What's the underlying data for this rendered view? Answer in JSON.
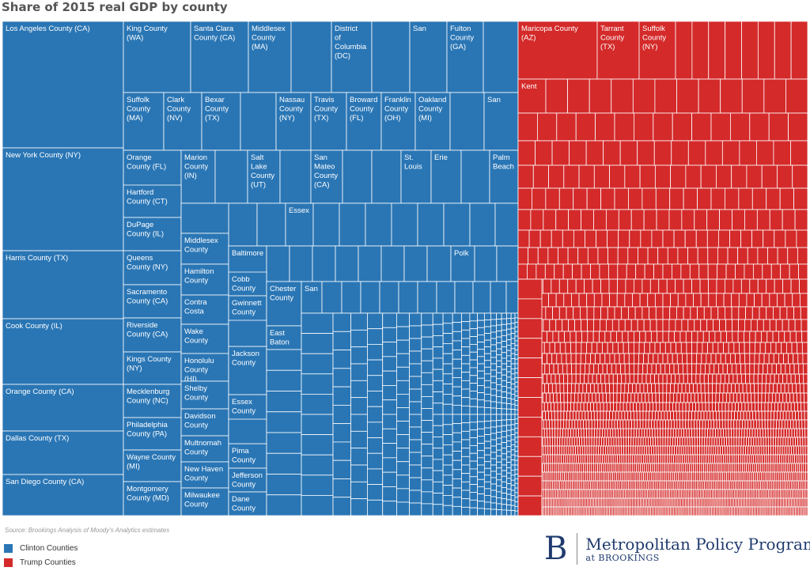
{
  "chart_data": {
    "type": "treemap",
    "title": "Share of 2015 real GDP by county",
    "source": "Source: Brookings Analysis of Moody's Analytics estimates",
    "colors": {
      "clinton": "#2a76b5",
      "trump": "#d42a2a",
      "border": "#ffffff"
    },
    "legend": [
      {
        "label": "Clinton Counties",
        "color": "#2a76b5"
      },
      {
        "label": "Trump Counties",
        "color": "#d42a2a"
      }
    ],
    "legend_position": "bottom-left",
    "clinton_labeled_counties": [
      "Los Angeles County (CA)",
      "New York County (NY)",
      "Harris County (TX)",
      "Cook County (IL)",
      "Orange County (CA)",
      "Dallas County (TX)",
      "San Diego County (CA)",
      "King County (WA)",
      "Santa Clara County (CA)",
      "Middlesex County (MA)",
      "District of Columbia (DC)",
      "San",
      "Fulton County (GA)",
      "Suffolk County (MA)",
      "Clark County (NV)",
      "Bexar County (TX)",
      "Nassau County (NY)",
      "Travis County (TX)",
      "Broward County (FL)",
      "Franklin County (OH)",
      "Oakland County (MI)",
      "San",
      "Orange County (FL)",
      "Marion County (IN)",
      "Salt Lake County (UT)",
      "San Mateo County (CA)",
      "St. Louis",
      "Erie",
      "Palm Beach",
      "Hartford County (CT)",
      "DuPage County (IL)",
      "Queens County (NY)",
      "Sacramento County (CA)",
      "Riverside County (CA)",
      "Kings County (NY)",
      "Mecklenburg County (NC)",
      "Philadelphia County (PA)",
      "Wayne County (MI)",
      "Montgomery County (MD)",
      "Essex",
      "Middlesex County",
      "Hamilton County",
      "Contra Costa",
      "Wake County",
      "Honolulu County (HI)",
      "Shelby County",
      "Davidson County",
      "Multnomah County",
      "New Haven County",
      "Milwaukee County",
      "Baltimore",
      "Polk",
      "Cobb County",
      "Chester County",
      "San",
      "Gwinnett County",
      "East Baton",
      "Jackson County",
      "Essex County",
      "Pima County",
      "Jefferson County",
      "Dane County"
    ],
    "trump_labeled_counties": [
      "Maricopa County (AZ)",
      "Tarrant County (TX)",
      "Suffolk County (NY)",
      "Kent"
    ]
  },
  "brand": {
    "mark": "B",
    "name": "Metropolitan Policy Program",
    "sub": "at BROOKINGS"
  }
}
